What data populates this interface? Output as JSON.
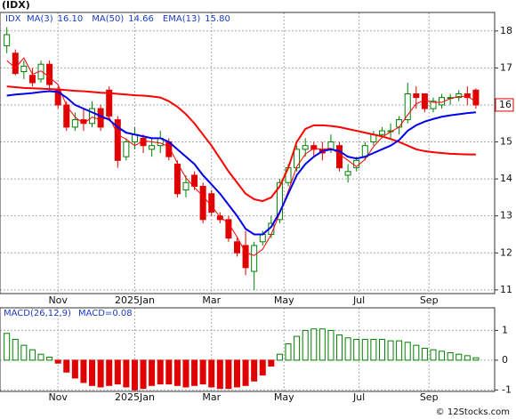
{
  "chart_data": [
    {
      "type": "candlestick",
      "title": "(IDX)",
      "symbol": "IDX",
      "categories": [
        null,
        null,
        null,
        null,
        null,
        null,
        null,
        null,
        null,
        null,
        null,
        null,
        null,
        null,
        null,
        null,
        null,
        null,
        null,
        null,
        null,
        null,
        null,
        null,
        null,
        null,
        null,
        null,
        null,
        null,
        null,
        null,
        null,
        null,
        null,
        null,
        null,
        null,
        null,
        null,
        null,
        null,
        null,
        null,
        null,
        null,
        null,
        null,
        null,
        null,
        null,
        null,
        null,
        null,
        null,
        null
      ],
      "open": [
        17.6,
        17.4,
        16.9,
        16.8,
        16.7,
        17.1,
        16.4,
        16.0,
        15.4,
        15.6,
        15.5,
        15.9,
        16.4,
        15.6,
        14.6,
        15.0,
        15.1,
        14.8,
        14.9,
        15.0,
        14.4,
        13.7,
        14.1,
        13.8,
        13.6,
        13.0,
        12.9,
        12.3,
        12.2,
        11.5,
        12.3,
        12.5,
        12.9,
        13.9,
        14.3,
        14.8,
        14.9,
        14.8,
        14.8,
        14.9,
        14.1,
        14.3,
        14.6,
        15.0,
        15.2,
        15.3,
        15.4,
        15.6,
        16.3,
        16.3,
        15.9,
        16.0,
        16.2,
        16.2,
        16.3,
        16.4
      ],
      "high": [
        18.1,
        17.5,
        17.2,
        17.0,
        17.2,
        17.2,
        16.5,
        16.1,
        15.8,
        15.9,
        16.1,
        16.0,
        16.5,
        15.7,
        15.1,
        15.4,
        15.2,
        15.1,
        15.3,
        15.1,
        14.5,
        14.1,
        14.2,
        13.9,
        13.7,
        13.1,
        13.0,
        12.4,
        12.6,
        12.3,
        12.6,
        13.0,
        14.0,
        14.4,
        14.9,
        15.1,
        15.0,
        15.0,
        15.2,
        15.0,
        14.4,
        14.6,
        15.0,
        15.3,
        15.4,
        15.5,
        15.7,
        16.6,
        16.5,
        16.3,
        16.2,
        16.3,
        16.3,
        16.4,
        16.5,
        16.45
      ],
      "low": [
        17.4,
        16.8,
        16.7,
        16.5,
        16.6,
        16.4,
        15.9,
        15.3,
        15.3,
        15.3,
        15.4,
        15.3,
        15.6,
        14.3,
        14.5,
        14.8,
        14.7,
        14.6,
        14.7,
        14.5,
        13.5,
        13.5,
        13.7,
        12.8,
        13.0,
        12.8,
        12.3,
        11.9,
        11.4,
        11.0,
        12.2,
        12.4,
        12.8,
        13.8,
        14.2,
        14.6,
        14.6,
        14.5,
        14.7,
        14.2,
        13.9,
        14.2,
        14.5,
        14.9,
        15.1,
        15.1,
        15.2,
        15.5,
        15.9,
        15.8,
        15.8,
        15.9,
        16.0,
        16.1,
        16.0,
        15.9
      ],
      "close": [
        17.9,
        16.85,
        17.05,
        16.6,
        17.1,
        16.55,
        16.0,
        15.4,
        15.6,
        15.5,
        15.9,
        15.4,
        15.7,
        14.5,
        15.0,
        15.2,
        14.9,
        14.9,
        15.1,
        14.6,
        13.6,
        13.9,
        13.8,
        12.9,
        13.1,
        12.9,
        12.4,
        12.0,
        11.6,
        12.2,
        12.5,
        12.8,
        13.9,
        14.3,
        14.8,
        14.9,
        14.8,
        14.7,
        15.0,
        14.3,
        14.2,
        14.5,
        14.9,
        15.2,
        15.3,
        15.3,
        15.6,
        16.3,
        16.2,
        15.9,
        16.1,
        16.2,
        16.2,
        16.3,
        16.2,
        16.0
      ],
      "up_color": "#008000",
      "down_color": "#e00000",
      "series": [
        {
          "name": "MA(3)",
          "color": "#ff0000",
          "width": 1,
          "legend_value": {
            "value": 16.1,
            "label": "16.10"
          },
          "values": [
            17.2,
            17.0,
            17.27,
            16.83,
            16.92,
            16.75,
            16.55,
            15.98,
            15.67,
            15.5,
            15.67,
            15.6,
            15.67,
            15.2,
            15.07,
            14.9,
            15.03,
            15.0,
            14.97,
            14.87,
            14.43,
            14.03,
            13.77,
            13.53,
            13.27,
            12.97,
            12.8,
            12.43,
            12.0,
            11.93,
            12.1,
            12.5,
            13.07,
            13.67,
            14.33,
            14.67,
            14.83,
            14.8,
            14.83,
            14.67,
            14.5,
            14.33,
            14.53,
            14.87,
            15.13,
            15.27,
            15.4,
            15.73,
            16.03,
            16.13,
            16.07,
            16.07,
            16.17,
            16.23,
            16.23,
            16.1
          ]
        },
        {
          "name": "MA(50)",
          "color": "#ff0000",
          "width": 2,
          "legend_value": {
            "value": 14.66,
            "label": "14.66"
          },
          "values": [
            16.5,
            16.48,
            16.46,
            16.45,
            16.44,
            16.43,
            16.42,
            16.4,
            16.38,
            16.37,
            16.35,
            16.33,
            16.32,
            16.3,
            16.28,
            16.26,
            16.25,
            16.23,
            16.2,
            16.1,
            15.95,
            15.75,
            15.5,
            15.2,
            14.9,
            14.55,
            14.2,
            13.9,
            13.6,
            13.45,
            13.4,
            13.5,
            13.8,
            14.3,
            15.0,
            15.35,
            15.45,
            15.45,
            15.43,
            15.4,
            15.35,
            15.3,
            15.25,
            15.2,
            15.15,
            15.08,
            15.0,
            14.9,
            14.8,
            14.75,
            14.72,
            14.7,
            14.68,
            14.67,
            14.66,
            14.66
          ]
        },
        {
          "name": "EMA(13)",
          "color": "#0000ee",
          "width": 2,
          "legend_value": {
            "value": 15.8,
            "label": "15.80"
          },
          "values": [
            16.25,
            16.28,
            16.3,
            16.32,
            16.35,
            16.37,
            16.35,
            16.2,
            16.0,
            15.9,
            15.8,
            15.7,
            15.6,
            15.4,
            15.25,
            15.2,
            15.15,
            15.1,
            15.1,
            15.0,
            14.8,
            14.6,
            14.4,
            14.1,
            13.85,
            13.6,
            13.3,
            13.0,
            12.65,
            12.5,
            12.5,
            12.7,
            13.1,
            13.6,
            14.1,
            14.4,
            14.6,
            14.75,
            14.8,
            14.75,
            14.6,
            14.55,
            14.6,
            14.7,
            14.8,
            14.9,
            15.05,
            15.3,
            15.45,
            15.55,
            15.62,
            15.68,
            15.72,
            15.75,
            15.78,
            15.8
          ]
        }
      ],
      "xlim": [
        -0.8,
        57.2
      ],
      "xticks": [
        {
          "value": 6,
          "label": "Nov"
        },
        {
          "value": 15,
          "label": "2025Jan"
        },
        {
          "value": 24,
          "label": "Mar"
        },
        {
          "value": 32.5,
          "label": "May"
        },
        {
          "value": 41.3,
          "label": "Jul"
        },
        {
          "value": 49.5,
          "label": "Sep"
        }
      ],
      "ylim": [
        10.9,
        18.5
      ],
      "yticks": [
        11,
        12,
        13,
        14,
        15,
        16,
        17,
        18
      ],
      "last_price": 16,
      "grid": true,
      "copyright": "© 12Stocks.com"
    },
    {
      "type": "bar",
      "title": "MACD(26,12,9)",
      "series": [
        {
          "name": "MACD=",
          "up_color": "#008000",
          "down_color": "#e00000",
          "legend_value": {
            "value": 0.08,
            "label": "0.08"
          },
          "values": [
            0.9,
            0.7,
            0.5,
            0.35,
            0.2,
            0.1,
            -0.1,
            -0.4,
            -0.6,
            -0.75,
            -0.85,
            -0.9,
            -0.85,
            -0.8,
            -0.9,
            -1.0,
            -0.95,
            -0.85,
            -0.8,
            -0.8,
            -0.85,
            -0.9,
            -0.85,
            -0.8,
            -0.9,
            -0.95,
            -0.95,
            -0.9,
            -0.85,
            -0.7,
            -0.5,
            -0.2,
            0.2,
            0.55,
            0.8,
            1.0,
            1.05,
            1.05,
            1.0,
            0.85,
            0.75,
            0.7,
            0.7,
            0.7,
            0.7,
            0.65,
            0.65,
            0.6,
            0.5,
            0.4,
            0.35,
            0.3,
            0.25,
            0.2,
            0.15,
            0.08
          ]
        }
      ],
      "ylim": [
        -1.05,
        1.76
      ],
      "yticks": [
        -1,
        0,
        1
      ],
      "grid": true
    }
  ]
}
